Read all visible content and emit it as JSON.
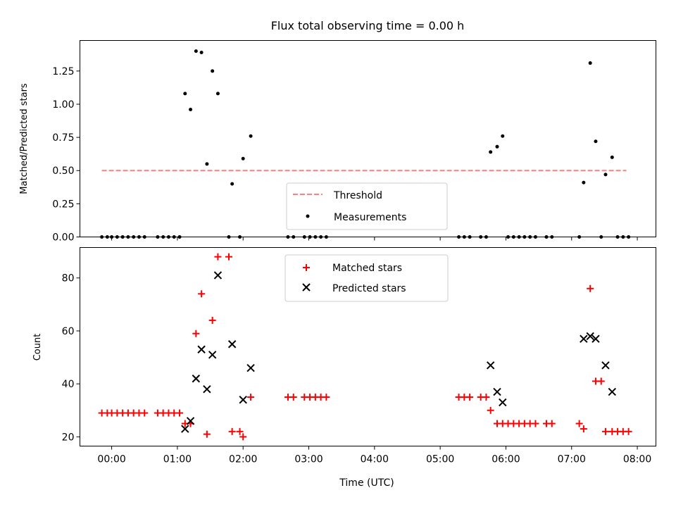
{
  "chart_data": [
    {
      "type": "scatter",
      "title": "Flux total observing time = 0.00 h",
      "xlabel": "",
      "ylabel": "Matched/Predicted stars",
      "xlim": [
        "23:31",
        "08:17"
      ],
      "ylim": [
        0,
        1.48
      ],
      "grid": false,
      "x_tick_labels": [
        "00:00",
        "01:00",
        "02:00",
        "03:00",
        "04:00",
        "05:00",
        "06:00",
        "07:00",
        "08:00"
      ],
      "show_x_tick_labels": false,
      "y_ticks": [
        0,
        0.25,
        0.5,
        0.75,
        1.0,
        1.25
      ],
      "y_tick_labels": [
        "0.00",
        "0.25",
        "0.50",
        "0.75",
        "1.00",
        "1.25"
      ],
      "legend_position": "lower-center",
      "threshold": {
        "name": "Threshold",
        "value": 0.5,
        "x_start": "23:51",
        "x_end": "07:50",
        "color": "#ff7f7f",
        "style": "dashed"
      },
      "series": [
        {
          "name": "Measurements",
          "marker": "dot",
          "color": "#000000",
          "points": [
            {
              "x": "23:51",
              "y": 0
            },
            {
              "x": "23:56",
              "y": 0
            },
            {
              "x": "00:00",
              "y": 0
            },
            {
              "x": "00:05",
              "y": 0
            },
            {
              "x": "00:10",
              "y": 0
            },
            {
              "x": "00:15",
              "y": 0
            },
            {
              "x": "00:20",
              "y": 0
            },
            {
              "x": "00:25",
              "y": 0
            },
            {
              "x": "00:30",
              "y": 0
            },
            {
              "x": "00:42",
              "y": 0
            },
            {
              "x": "00:47",
              "y": 0
            },
            {
              "x": "00:52",
              "y": 0
            },
            {
              "x": "00:57",
              "y": 0
            },
            {
              "x": "01:02",
              "y": 0
            },
            {
              "x": "01:07",
              "y": 1.08
            },
            {
              "x": "01:12",
              "y": 0.96
            },
            {
              "x": "01:17",
              "y": 1.4
            },
            {
              "x": "01:22",
              "y": 1.39
            },
            {
              "x": "01:27",
              "y": 0.55
            },
            {
              "x": "01:32",
              "y": 1.25
            },
            {
              "x": "01:37",
              "y": 1.08
            },
            {
              "x": "01:47",
              "y": 0
            },
            {
              "x": "01:50",
              "y": 0.4
            },
            {
              "x": "01:57",
              "y": 0
            },
            {
              "x": "02:00",
              "y": 0.59
            },
            {
              "x": "02:07",
              "y": 0.76
            },
            {
              "x": "02:41",
              "y": 0
            },
            {
              "x": "02:46",
              "y": 0
            },
            {
              "x": "02:56",
              "y": 0
            },
            {
              "x": "03:01",
              "y": 0
            },
            {
              "x": "03:06",
              "y": 0
            },
            {
              "x": "03:11",
              "y": 0
            },
            {
              "x": "03:16",
              "y": 0
            },
            {
              "x": "05:17",
              "y": 0
            },
            {
              "x": "05:22",
              "y": 0
            },
            {
              "x": "05:27",
              "y": 0
            },
            {
              "x": "05:37",
              "y": 0
            },
            {
              "x": "05:42",
              "y": 0
            },
            {
              "x": "05:46",
              "y": 0.64
            },
            {
              "x": "05:52",
              "y": 0.68
            },
            {
              "x": "05:57",
              "y": 0.76
            },
            {
              "x": "06:02",
              "y": 0
            },
            {
              "x": "06:07",
              "y": 0
            },
            {
              "x": "06:12",
              "y": 0
            },
            {
              "x": "06:17",
              "y": 0
            },
            {
              "x": "06:22",
              "y": 0
            },
            {
              "x": "06:27",
              "y": 0
            },
            {
              "x": "06:37",
              "y": 0
            },
            {
              "x": "06:42",
              "y": 0
            },
            {
              "x": "07:07",
              "y": 0
            },
            {
              "x": "07:11",
              "y": 0.41
            },
            {
              "x": "07:17",
              "y": 1.31
            },
            {
              "x": "07:22",
              "y": 0.72
            },
            {
              "x": "07:27",
              "y": 0
            },
            {
              "x": "07:31",
              "y": 0.47
            },
            {
              "x": "07:37",
              "y": 0.6
            },
            {
              "x": "07:42",
              "y": 0
            },
            {
              "x": "07:47",
              "y": 0
            },
            {
              "x": "07:52",
              "y": 0
            }
          ]
        }
      ]
    },
    {
      "type": "scatter",
      "title": "",
      "xlabel": "Time (UTC)",
      "ylabel": "Count",
      "xlim": [
        "23:31",
        "08:17"
      ],
      "ylim": [
        16.5,
        91.5
      ],
      "grid": false,
      "x_tick_labels": [
        "00:00",
        "01:00",
        "02:00",
        "03:00",
        "04:00",
        "05:00",
        "06:00",
        "07:00",
        "08:00"
      ],
      "show_x_tick_labels": true,
      "y_ticks": [
        20,
        40,
        60,
        80
      ],
      "y_tick_labels": [
        "20",
        "40",
        "60",
        "80"
      ],
      "legend_position": "upper-center",
      "series": [
        {
          "name": "Matched stars",
          "marker": "plus",
          "color": "#ff0000",
          "points": [
            {
              "x": "23:51",
              "y": 29
            },
            {
              "x": "23:56",
              "y": 29
            },
            {
              "x": "00:00",
              "y": 29
            },
            {
              "x": "00:05",
              "y": 29
            },
            {
              "x": "00:10",
              "y": 29
            },
            {
              "x": "00:15",
              "y": 29
            },
            {
              "x": "00:20",
              "y": 29
            },
            {
              "x": "00:25",
              "y": 29
            },
            {
              "x": "00:30",
              "y": 29
            },
            {
              "x": "00:42",
              "y": 29
            },
            {
              "x": "00:47",
              "y": 29
            },
            {
              "x": "00:52",
              "y": 29
            },
            {
              "x": "00:57",
              "y": 29
            },
            {
              "x": "01:02",
              "y": 29
            },
            {
              "x": "01:07",
              "y": 25
            },
            {
              "x": "01:12",
              "y": 25
            },
            {
              "x": "01:17",
              "y": 59
            },
            {
              "x": "01:22",
              "y": 74
            },
            {
              "x": "01:27",
              "y": 21
            },
            {
              "x": "01:32",
              "y": 64
            },
            {
              "x": "01:37",
              "y": 88
            },
            {
              "x": "01:47",
              "y": 88
            },
            {
              "x": "01:50",
              "y": 22
            },
            {
              "x": "01:57",
              "y": 22
            },
            {
              "x": "02:00",
              "y": 20
            },
            {
              "x": "02:07",
              "y": 35
            },
            {
              "x": "02:41",
              "y": 35
            },
            {
              "x": "02:46",
              "y": 35
            },
            {
              "x": "02:56",
              "y": 35
            },
            {
              "x": "03:01",
              "y": 35
            },
            {
              "x": "03:06",
              "y": 35
            },
            {
              "x": "03:11",
              "y": 35
            },
            {
              "x": "03:16",
              "y": 35
            },
            {
              "x": "05:17",
              "y": 35
            },
            {
              "x": "05:22",
              "y": 35
            },
            {
              "x": "05:27",
              "y": 35
            },
            {
              "x": "05:37",
              "y": 35
            },
            {
              "x": "05:42",
              "y": 35
            },
            {
              "x": "05:46",
              "y": 30
            },
            {
              "x": "05:52",
              "y": 25
            },
            {
              "x": "05:57",
              "y": 25
            },
            {
              "x": "06:02",
              "y": 25
            },
            {
              "x": "06:07",
              "y": 25
            },
            {
              "x": "06:12",
              "y": 25
            },
            {
              "x": "06:17",
              "y": 25
            },
            {
              "x": "06:22",
              "y": 25
            },
            {
              "x": "06:27",
              "y": 25
            },
            {
              "x": "06:37",
              "y": 25
            },
            {
              "x": "06:42",
              "y": 25
            },
            {
              "x": "07:07",
              "y": 25
            },
            {
              "x": "07:11",
              "y": 23
            },
            {
              "x": "07:17",
              "y": 76
            },
            {
              "x": "07:22",
              "y": 41
            },
            {
              "x": "07:27",
              "y": 41
            },
            {
              "x": "07:31",
              "y": 22
            },
            {
              "x": "07:37",
              "y": 22
            },
            {
              "x": "07:42",
              "y": 22
            },
            {
              "x": "07:47",
              "y": 22
            },
            {
              "x": "07:52",
              "y": 22
            }
          ]
        },
        {
          "name": "Predicted stars",
          "marker": "x",
          "color": "#000000",
          "points": [
            {
              "x": "01:07",
              "y": 23
            },
            {
              "x": "01:12",
              "y": 26
            },
            {
              "x": "01:17",
              "y": 42
            },
            {
              "x": "01:22",
              "y": 53
            },
            {
              "x": "01:27",
              "y": 38
            },
            {
              "x": "01:32",
              "y": 51
            },
            {
              "x": "01:37",
              "y": 81
            },
            {
              "x": "01:50",
              "y": 55
            },
            {
              "x": "02:00",
              "y": 34
            },
            {
              "x": "02:07",
              "y": 46
            },
            {
              "x": "05:46",
              "y": 47
            },
            {
              "x": "05:52",
              "y": 37
            },
            {
              "x": "05:57",
              "y": 33
            },
            {
              "x": "07:11",
              "y": 57
            },
            {
              "x": "07:17",
              "y": 58
            },
            {
              "x": "07:22",
              "y": 57
            },
            {
              "x": "07:31",
              "y": 47
            },
            {
              "x": "07:37",
              "y": 37
            }
          ]
        }
      ]
    }
  ]
}
